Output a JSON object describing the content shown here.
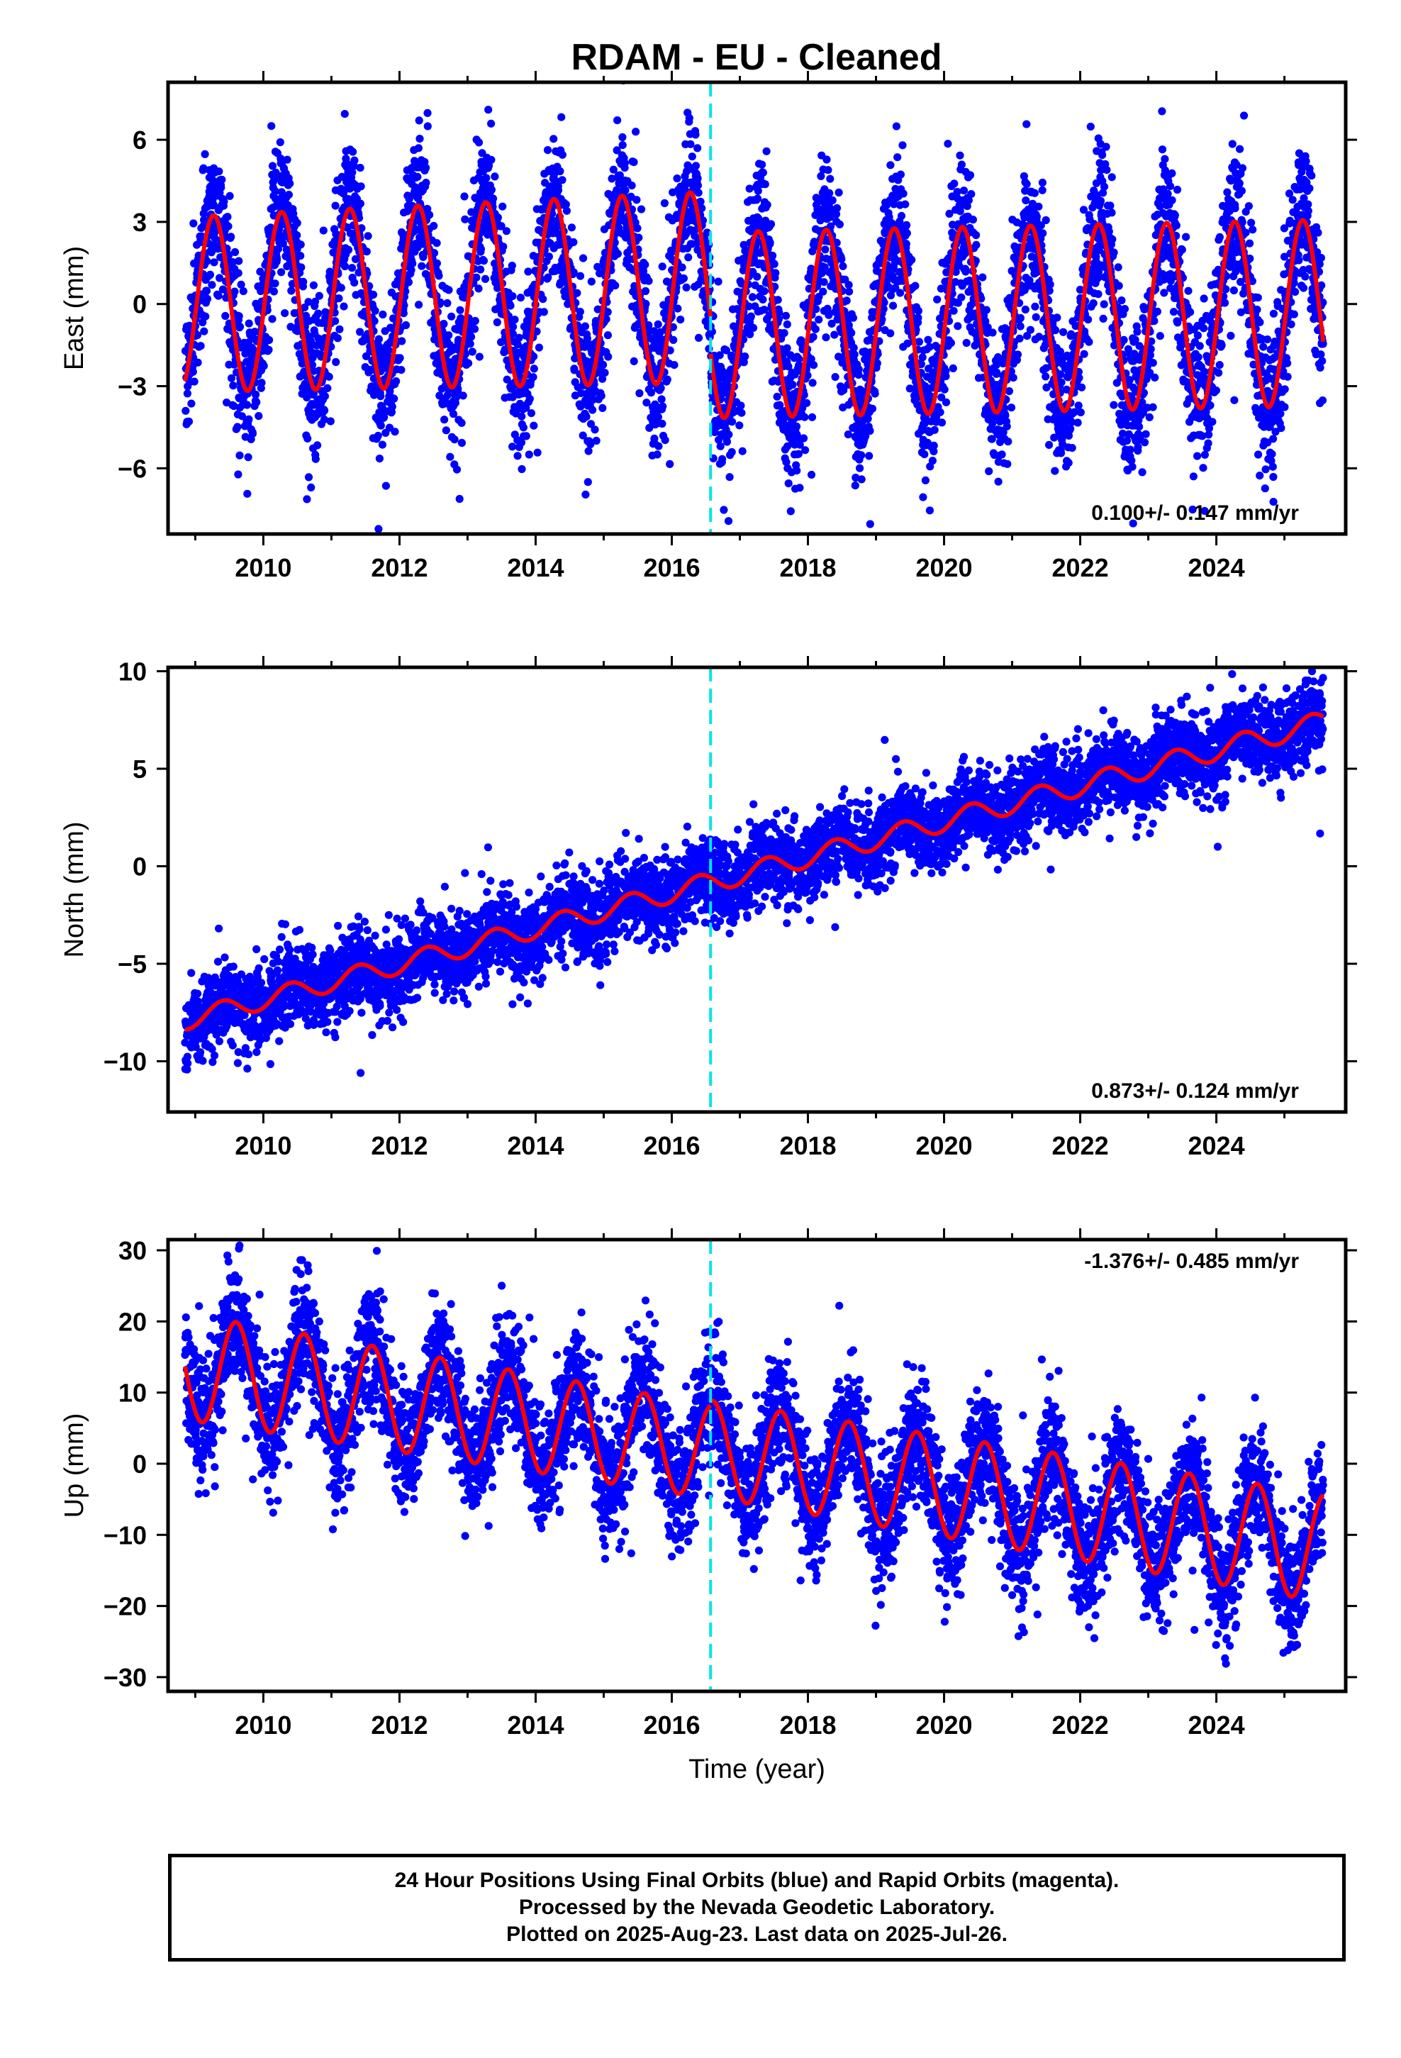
{
  "title": "RDAM  - EU - Cleaned",
  "colors": {
    "final_orbits": "#0000ff",
    "model_fit": "#ff0000",
    "event_line": "#00e5e5"
  },
  "chart_data": [
    {
      "type": "scatter",
      "name": "east",
      "ylabel": "East (mm)",
      "xlabel": "",
      "xlim": [
        2008.6,
        2025.9
      ],
      "ylim": [
        -8.4,
        8.1
      ],
      "xticks": [
        2010,
        2012,
        2014,
        2016,
        2018,
        2020,
        2022,
        2024
      ],
      "yticks": [
        -6,
        -3,
        0,
        3,
        6
      ],
      "ytick_labels": [
        "−6",
        "−3",
        "0",
        "3",
        "6"
      ],
      "data_range": [
        2008.85,
        2025.57
      ],
      "rate_text": "0.100+/- 0.147 mm/yr",
      "rate_position": "bottom-right",
      "event_line_x": 2016.57,
      "model": {
        "segments": [
          {
            "start": 2008.85,
            "end": 2016.57,
            "offset": 0.3,
            "trend": 0.08,
            "t0": 2012.7,
            "amp_start": 3.2,
            "amp_end": 3.5,
            "peak": 0.27
          },
          {
            "start": 2016.57,
            "end": 2025.57,
            "offset": -0.55,
            "trend": 0.05,
            "t0": 2021.0,
            "amp_start": 3.4,
            "amp_end": 3.4,
            "peak": 0.27
          }
        ]
      },
      "scatter_noise": 1.3
    },
    {
      "type": "scatter",
      "name": "north",
      "ylabel": "North (mm)",
      "xlabel": "",
      "xlim": [
        2008.6,
        2025.9
      ],
      "ylim": [
        -12.6,
        10.2
      ],
      "xticks": [
        2010,
        2012,
        2014,
        2016,
        2018,
        2020,
        2022,
        2024
      ],
      "yticks": [
        -10,
        -5,
        0,
        5,
        10
      ],
      "ytick_labels": [
        "−10",
        "−5",
        "0",
        "5",
        "10"
      ],
      "data_range": [
        2008.85,
        2025.57
      ],
      "rate_text": "0.873+/- 0.124 mm/yr",
      "rate_position": "bottom-right",
      "event_line_x": 2016.57,
      "model": {
        "segments": [
          {
            "start": 2008.85,
            "end": 2025.57,
            "offset": -7.9,
            "trend": 0.915,
            "t0": 2008.85,
            "amp_start": 0.5,
            "amp_end": 0.55,
            "peak": 0.4
          }
        ]
      },
      "scatter_noise": 1.0
    },
    {
      "type": "scatter",
      "name": "up",
      "ylabel": "Up (mm)",
      "xlabel": "Time (year)",
      "xlim": [
        2008.6,
        2025.9
      ],
      "ylim": [
        -32,
        31.5
      ],
      "xticks": [
        2010,
        2012,
        2014,
        2016,
        2018,
        2020,
        2022,
        2024
      ],
      "yticks": [
        -30,
        -20,
        -10,
        0,
        10,
        20,
        30
      ],
      "ytick_labels": [
        "−30",
        "−20",
        "−10",
        "0",
        "10",
        "20",
        "30"
      ],
      "data_range": [
        2008.85,
        2025.57
      ],
      "rate_text": "-1.376+/- 0.485 mm/yr",
      "rate_position": "top-right",
      "event_line_x": 2016.57,
      "model": {
        "segments": [
          {
            "start": 2008.85,
            "end": 2016.57,
            "offset": 12.5,
            "trend": -1.55,
            "t0": 2009.6,
            "amp_start": 7.5,
            "amp_end": 6.6,
            "peak": 0.6
          },
          {
            "start": 2016.57,
            "end": 2025.57,
            "offset": 0.5,
            "trend": -1.55,
            "t0": 2017.6,
            "amp_start": 6.8,
            "amp_end": 7.6,
            "peak": 0.6
          }
        ]
      },
      "scatter_noise": 4.3
    }
  ],
  "caption": {
    "line1": "24 Hour Positions Using Final Orbits (blue) and Rapid Orbits (magenta).",
    "line2": "Processed by the Nevada Geodetic Laboratory.",
    "line3": "Plotted on 2025-Aug-23. Last data on 2025-Jul-26."
  }
}
